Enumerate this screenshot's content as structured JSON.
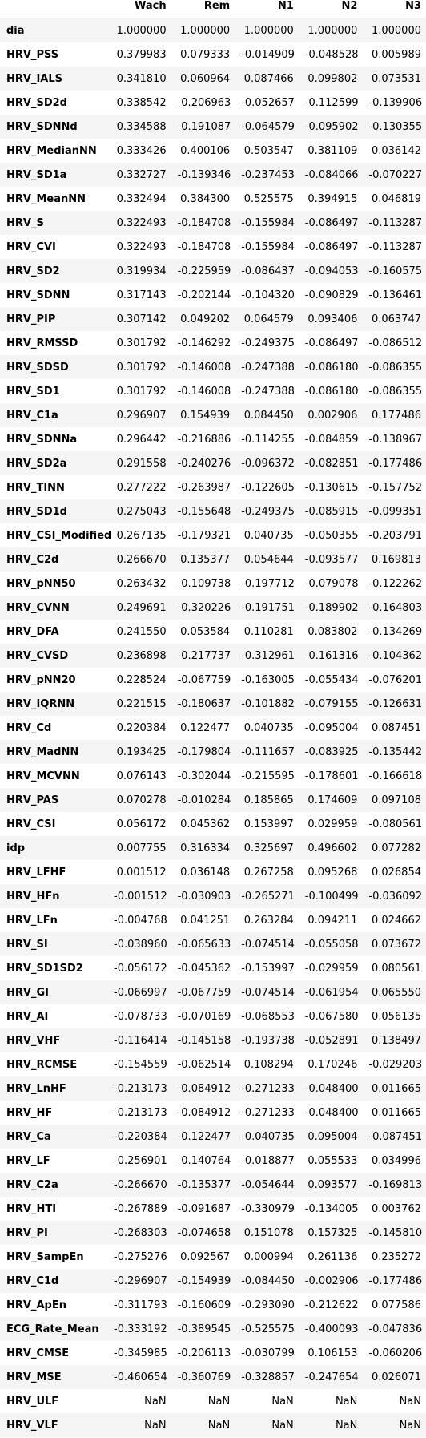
{
  "columns": [
    "",
    "Wach",
    "Rem",
    "N1",
    "N2",
    "N3"
  ],
  "rows": [
    [
      "dia",
      "1.000000",
      "1.000000",
      "1.000000",
      "1.000000",
      "1.000000"
    ],
    [
      "HRV_PSS",
      "0.379983",
      "0.079333",
      "-0.014909",
      "-0.048528",
      "0.005989"
    ],
    [
      "HRV_IALS",
      "0.341810",
      "0.060964",
      "0.087466",
      "0.099802",
      "0.073531"
    ],
    [
      "HRV_SD2d",
      "0.338542",
      "-0.206963",
      "-0.052657",
      "-0.112599",
      "-0.139906"
    ],
    [
      "HRV_SDNNd",
      "0.334588",
      "-0.191087",
      "-0.064579",
      "-0.095902",
      "-0.130355"
    ],
    [
      "HRV_MedianNN",
      "0.333426",
      "0.400106",
      "0.503547",
      "0.381109",
      "0.036142"
    ],
    [
      "HRV_SD1a",
      "0.332727",
      "-0.139346",
      "-0.237453",
      "-0.084066",
      "-0.070227"
    ],
    [
      "HRV_MeanNN",
      "0.332494",
      "0.384300",
      "0.525575",
      "0.394915",
      "0.046819"
    ],
    [
      "HRV_S",
      "0.322493",
      "-0.184708",
      "-0.155984",
      "-0.086497",
      "-0.113287"
    ],
    [
      "HRV_CVI",
      "0.322493",
      "-0.184708",
      "-0.155984",
      "-0.086497",
      "-0.113287"
    ],
    [
      "HRV_SD2",
      "0.319934",
      "-0.225959",
      "-0.086437",
      "-0.094053",
      "-0.160575"
    ],
    [
      "HRV_SDNN",
      "0.317143",
      "-0.202144",
      "-0.104320",
      "-0.090829",
      "-0.136461"
    ],
    [
      "HRV_PIP",
      "0.307142",
      "0.049202",
      "0.064579",
      "0.093406",
      "0.063747"
    ],
    [
      "HRV_RMSSD",
      "0.301792",
      "-0.146292",
      "-0.249375",
      "-0.086497",
      "-0.086512"
    ],
    [
      "HRV_SDSD",
      "0.301792",
      "-0.146008",
      "-0.247388",
      "-0.086180",
      "-0.086355"
    ],
    [
      "HRV_SD1",
      "0.301792",
      "-0.146008",
      "-0.247388",
      "-0.086180",
      "-0.086355"
    ],
    [
      "HRV_C1a",
      "0.296907",
      "0.154939",
      "0.084450",
      "0.002906",
      "0.177486"
    ],
    [
      "HRV_SDNNa",
      "0.296442",
      "-0.216886",
      "-0.114255",
      "-0.084859",
      "-0.138967"
    ],
    [
      "HRV_SD2a",
      "0.291558",
      "-0.240276",
      "-0.096372",
      "-0.082851",
      "-0.177486"
    ],
    [
      "HRV_TINN",
      "0.277222",
      "-0.263987",
      "-0.122605",
      "-0.130615",
      "-0.157752"
    ],
    [
      "HRV_SD1d",
      "0.275043",
      "-0.155648",
      "-0.249375",
      "-0.085915",
      "-0.099351"
    ],
    [
      "HRV_CSI_Modified",
      "0.267135",
      "-0.179321",
      "0.040735",
      "-0.050355",
      "-0.203791"
    ],
    [
      "HRV_C2d",
      "0.266670",
      "0.135377",
      "0.054644",
      "-0.093577",
      "0.169813"
    ],
    [
      "HRV_pNN50",
      "0.263432",
      "-0.109738",
      "-0.197712",
      "-0.079078",
      "-0.122262"
    ],
    [
      "HRV_CVNN",
      "0.249691",
      "-0.320226",
      "-0.191751",
      "-0.189902",
      "-0.164803"
    ],
    [
      "HRV_DFA",
      "0.241550",
      "0.053584",
      "0.110281",
      "0.083802",
      "-0.134269"
    ],
    [
      "HRV_CVSD",
      "0.236898",
      "-0.217737",
      "-0.312961",
      "-0.161316",
      "-0.104362"
    ],
    [
      "HRV_pNN20",
      "0.228524",
      "-0.067759",
      "-0.163005",
      "-0.055434",
      "-0.076201"
    ],
    [
      "HRV_IQRNN",
      "0.221515",
      "-0.180637",
      "-0.101882",
      "-0.079155",
      "-0.126631"
    ],
    [
      "HRV_Cd",
      "0.220384",
      "0.122477",
      "0.040735",
      "-0.095004",
      "0.087451"
    ],
    [
      "HRV_MadNN",
      "0.193425",
      "-0.179804",
      "-0.111657",
      "-0.083925",
      "-0.135442"
    ],
    [
      "HRV_MCVNN",
      "0.076143",
      "-0.302044",
      "-0.215595",
      "-0.178601",
      "-0.166618"
    ],
    [
      "HRV_PAS",
      "0.070278",
      "-0.010284",
      "0.185865",
      "0.174609",
      "0.097108"
    ],
    [
      "HRV_CSI",
      "0.056172",
      "0.045362",
      "0.153997",
      "0.029959",
      "-0.080561"
    ],
    [
      "idp",
      "0.007755",
      "0.316334",
      "0.325697",
      "0.496602",
      "0.077282"
    ],
    [
      "HRV_LFHF",
      "0.001512",
      "0.036148",
      "0.267258",
      "0.095268",
      "0.026854"
    ],
    [
      "HRV_HFn",
      "-0.001512",
      "-0.030903",
      "-0.265271",
      "-0.100499",
      "-0.036092"
    ],
    [
      "HRV_LFn",
      "-0.004768",
      "0.041251",
      "0.263284",
      "0.094211",
      "0.024662"
    ],
    [
      "HRV_SI",
      "-0.038960",
      "-0.065633",
      "-0.074514",
      "-0.055058",
      "0.073672"
    ],
    [
      "HRV_SD1SD2",
      "-0.056172",
      "-0.045362",
      "-0.153997",
      "-0.029959",
      "0.080561"
    ],
    [
      "HRV_GI",
      "-0.066997",
      "-0.067759",
      "-0.074514",
      "-0.061954",
      "0.065550"
    ],
    [
      "HRV_AI",
      "-0.078733",
      "-0.070169",
      "-0.068553",
      "-0.067580",
      "0.056135"
    ],
    [
      "HRV_VHF",
      "-0.116414",
      "-0.145158",
      "-0.193738",
      "-0.052891",
      "0.138497"
    ],
    [
      "HRV_RCMSE",
      "-0.154559",
      "-0.062514",
      "0.108294",
      "0.170246",
      "-0.029203"
    ],
    [
      "HRV_LnHF",
      "-0.213173",
      "-0.084912",
      "-0.271233",
      "-0.048400",
      "0.011665"
    ],
    [
      "HRV_HF",
      "-0.213173",
      "-0.084912",
      "-0.271233",
      "-0.048400",
      "0.011665"
    ],
    [
      "HRV_Ca",
      "-0.220384",
      "-0.122477",
      "-0.040735",
      "0.095004",
      "-0.087451"
    ],
    [
      "HRV_LF",
      "-0.256901",
      "-0.140764",
      "-0.018877",
      "0.055533",
      "0.034996"
    ],
    [
      "HRV_C2a",
      "-0.266670",
      "-0.135377",
      "-0.054644",
      "0.093577",
      "-0.169813"
    ],
    [
      "HRV_HTI",
      "-0.267889",
      "-0.091687",
      "-0.330979",
      "-0.134005",
      "0.003762"
    ],
    [
      "HRV_PI",
      "-0.268303",
      "-0.074658",
      "0.151078",
      "0.157325",
      "-0.145810"
    ],
    [
      "HRV_SampEn",
      "-0.275276",
      "0.092567",
      "0.000994",
      "0.261136",
      "0.235272"
    ],
    [
      "HRV_C1d",
      "-0.296907",
      "-0.154939",
      "-0.084450",
      "-0.002906",
      "-0.177486"
    ],
    [
      "HRV_ApEn",
      "-0.311793",
      "-0.160609",
      "-0.293090",
      "-0.212622",
      "0.077586"
    ],
    [
      "ECG_Rate_Mean",
      "-0.333192",
      "-0.389545",
      "-0.525575",
      "-0.400093",
      "-0.047836"
    ],
    [
      "HRV_CMSE",
      "-0.345985",
      "-0.206113",
      "-0.030799",
      "0.106153",
      "-0.060206"
    ],
    [
      "HRV_MSE",
      "-0.460654",
      "-0.360769",
      "-0.328857",
      "-0.247654",
      "0.026071"
    ],
    [
      "HRV_ULF",
      "NaN",
      "NaN",
      "NaN",
      "NaN",
      "NaN"
    ],
    [
      "HRV_VLF",
      "NaN",
      "NaN",
      "NaN",
      "NaN",
      "NaN"
    ]
  ]
}
